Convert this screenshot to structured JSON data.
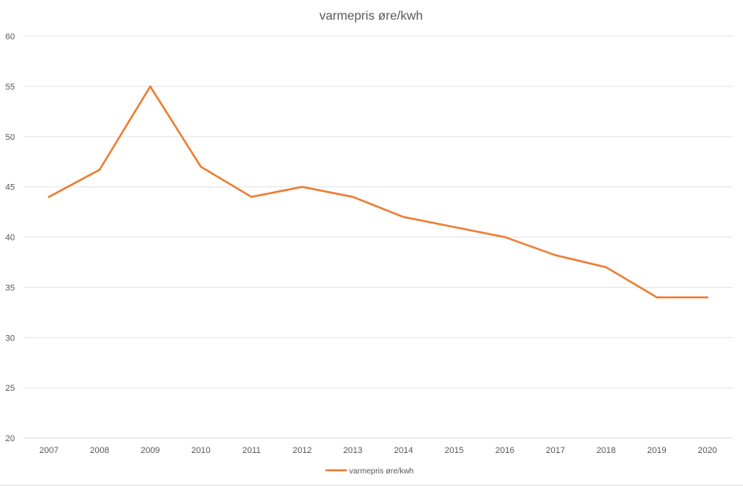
{
  "chart_data": {
    "type": "line",
    "title": "varmepris øre/kwh",
    "xlabel": "",
    "ylabel": "",
    "categories": [
      "2007",
      "2008",
      "2009",
      "2010",
      "2011",
      "2012",
      "2013",
      "2014",
      "2015",
      "2016",
      "2017",
      "2018",
      "2019",
      "2020"
    ],
    "series": [
      {
        "name": "varmepris øre/kwh",
        "color": "#ed7d31",
        "values": [
          44,
          46.7,
          55,
          47,
          44,
          45,
          44,
          42,
          41,
          40,
          38.2,
          37,
          34,
          34
        ]
      }
    ],
    "ylim": [
      20,
      60
    ],
    "yticks": [
      20,
      25,
      30,
      35,
      40,
      45,
      50,
      55,
      60
    ],
    "grid": true,
    "legend_position": "bottom"
  }
}
